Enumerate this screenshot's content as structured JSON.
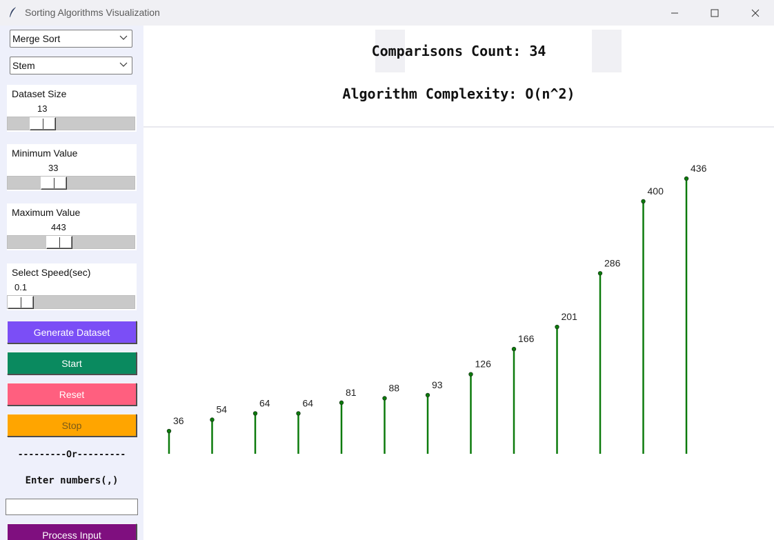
{
  "window": {
    "title": "Sorting Algorithms Visualization",
    "app_icon": "feather-icon",
    "controls": [
      "minimize-icon",
      "maximize-icon",
      "close-icon"
    ]
  },
  "sidebar": {
    "algorithm_select": {
      "value": "Merge Sort"
    },
    "chart_type_select": {
      "value": "Stem"
    },
    "sliders": {
      "dataset_size": {
        "label": "Dataset Size",
        "value": "13"
      },
      "minimum_value": {
        "label": "Minimum Value",
        "value": "33"
      },
      "maximum_value": {
        "label": "Maximum Value",
        "value": "443"
      },
      "speed": {
        "label": "Select Speed(sec)",
        "value": "0.1"
      }
    },
    "buttons": {
      "generate": "Generate Dataset",
      "start": "Start",
      "reset": "Reset",
      "stop": "Stop",
      "process": "Process Input"
    },
    "separator": "---------Or---------",
    "enter_label": "Enter numbers(,)",
    "input": {
      "value": "",
      "placeholder": ""
    }
  },
  "header": {
    "comparisons": "Comparisons Count: 34",
    "complexity": "Algorithm Complexity: O(n^2)"
  },
  "colors": {
    "stem": "#0b7a0b",
    "generate": "#7b4ef6",
    "start": "#0a8a5f",
    "reset": "#ff5f7f",
    "stop": "#ffa500",
    "process": "#7f0f7f"
  },
  "chart_data": {
    "type": "stem",
    "values": [
      36,
      54,
      64,
      64,
      81,
      88,
      93,
      126,
      166,
      201,
      286,
      400,
      436
    ],
    "ylim": [
      0,
      436
    ],
    "grid": false
  }
}
